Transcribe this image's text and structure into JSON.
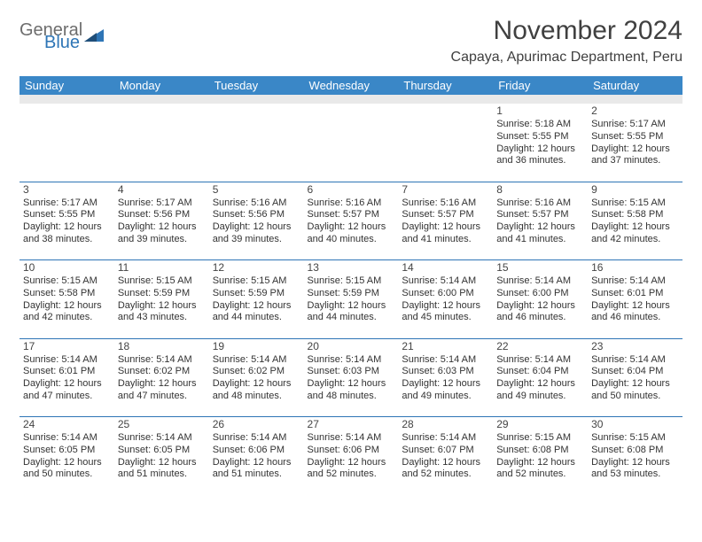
{
  "brand": {
    "general": "General",
    "blue": "Blue"
  },
  "title": "November 2024",
  "location": "Capaya, Apurimac Department, Peru",
  "colors": {
    "header_bg": "#3a87c7",
    "header_text": "#ffffff",
    "rule": "#2e75b6",
    "gap_bg": "#e9e9e9",
    "title_color": "#404040",
    "logo_gray": "#6d6d6d",
    "logo_blue": "#2e75b6",
    "cell_text": "#333333"
  },
  "day_headers": [
    "Sunday",
    "Monday",
    "Tuesday",
    "Wednesday",
    "Thursday",
    "Friday",
    "Saturday"
  ],
  "weeks": [
    [
      null,
      null,
      null,
      null,
      null,
      {
        "n": "1",
        "sunrise": "Sunrise: 5:18 AM",
        "sunset": "Sunset: 5:55 PM",
        "day1": "Daylight: 12 hours",
        "day2": "and 36 minutes."
      },
      {
        "n": "2",
        "sunrise": "Sunrise: 5:17 AM",
        "sunset": "Sunset: 5:55 PM",
        "day1": "Daylight: 12 hours",
        "day2": "and 37 minutes."
      }
    ],
    [
      {
        "n": "3",
        "sunrise": "Sunrise: 5:17 AM",
        "sunset": "Sunset: 5:55 PM",
        "day1": "Daylight: 12 hours",
        "day2": "and 38 minutes."
      },
      {
        "n": "4",
        "sunrise": "Sunrise: 5:17 AM",
        "sunset": "Sunset: 5:56 PM",
        "day1": "Daylight: 12 hours",
        "day2": "and 39 minutes."
      },
      {
        "n": "5",
        "sunrise": "Sunrise: 5:16 AM",
        "sunset": "Sunset: 5:56 PM",
        "day1": "Daylight: 12 hours",
        "day2": "and 39 minutes."
      },
      {
        "n": "6",
        "sunrise": "Sunrise: 5:16 AM",
        "sunset": "Sunset: 5:57 PM",
        "day1": "Daylight: 12 hours",
        "day2": "and 40 minutes."
      },
      {
        "n": "7",
        "sunrise": "Sunrise: 5:16 AM",
        "sunset": "Sunset: 5:57 PM",
        "day1": "Daylight: 12 hours",
        "day2": "and 41 minutes."
      },
      {
        "n": "8",
        "sunrise": "Sunrise: 5:16 AM",
        "sunset": "Sunset: 5:57 PM",
        "day1": "Daylight: 12 hours",
        "day2": "and 41 minutes."
      },
      {
        "n": "9",
        "sunrise": "Sunrise: 5:15 AM",
        "sunset": "Sunset: 5:58 PM",
        "day1": "Daylight: 12 hours",
        "day2": "and 42 minutes."
      }
    ],
    [
      {
        "n": "10",
        "sunrise": "Sunrise: 5:15 AM",
        "sunset": "Sunset: 5:58 PM",
        "day1": "Daylight: 12 hours",
        "day2": "and 42 minutes."
      },
      {
        "n": "11",
        "sunrise": "Sunrise: 5:15 AM",
        "sunset": "Sunset: 5:59 PM",
        "day1": "Daylight: 12 hours",
        "day2": "and 43 minutes."
      },
      {
        "n": "12",
        "sunrise": "Sunrise: 5:15 AM",
        "sunset": "Sunset: 5:59 PM",
        "day1": "Daylight: 12 hours",
        "day2": "and 44 minutes."
      },
      {
        "n": "13",
        "sunrise": "Sunrise: 5:15 AM",
        "sunset": "Sunset: 5:59 PM",
        "day1": "Daylight: 12 hours",
        "day2": "and 44 minutes."
      },
      {
        "n": "14",
        "sunrise": "Sunrise: 5:14 AM",
        "sunset": "Sunset: 6:00 PM",
        "day1": "Daylight: 12 hours",
        "day2": "and 45 minutes."
      },
      {
        "n": "15",
        "sunrise": "Sunrise: 5:14 AM",
        "sunset": "Sunset: 6:00 PM",
        "day1": "Daylight: 12 hours",
        "day2": "and 46 minutes."
      },
      {
        "n": "16",
        "sunrise": "Sunrise: 5:14 AM",
        "sunset": "Sunset: 6:01 PM",
        "day1": "Daylight: 12 hours",
        "day2": "and 46 minutes."
      }
    ],
    [
      {
        "n": "17",
        "sunrise": "Sunrise: 5:14 AM",
        "sunset": "Sunset: 6:01 PM",
        "day1": "Daylight: 12 hours",
        "day2": "and 47 minutes."
      },
      {
        "n": "18",
        "sunrise": "Sunrise: 5:14 AM",
        "sunset": "Sunset: 6:02 PM",
        "day1": "Daylight: 12 hours",
        "day2": "and 47 minutes."
      },
      {
        "n": "19",
        "sunrise": "Sunrise: 5:14 AM",
        "sunset": "Sunset: 6:02 PM",
        "day1": "Daylight: 12 hours",
        "day2": "and 48 minutes."
      },
      {
        "n": "20",
        "sunrise": "Sunrise: 5:14 AM",
        "sunset": "Sunset: 6:03 PM",
        "day1": "Daylight: 12 hours",
        "day2": "and 48 minutes."
      },
      {
        "n": "21",
        "sunrise": "Sunrise: 5:14 AM",
        "sunset": "Sunset: 6:03 PM",
        "day1": "Daylight: 12 hours",
        "day2": "and 49 minutes."
      },
      {
        "n": "22",
        "sunrise": "Sunrise: 5:14 AM",
        "sunset": "Sunset: 6:04 PM",
        "day1": "Daylight: 12 hours",
        "day2": "and 49 minutes."
      },
      {
        "n": "23",
        "sunrise": "Sunrise: 5:14 AM",
        "sunset": "Sunset: 6:04 PM",
        "day1": "Daylight: 12 hours",
        "day2": "and 50 minutes."
      }
    ],
    [
      {
        "n": "24",
        "sunrise": "Sunrise: 5:14 AM",
        "sunset": "Sunset: 6:05 PM",
        "day1": "Daylight: 12 hours",
        "day2": "and 50 minutes."
      },
      {
        "n": "25",
        "sunrise": "Sunrise: 5:14 AM",
        "sunset": "Sunset: 6:05 PM",
        "day1": "Daylight: 12 hours",
        "day2": "and 51 minutes."
      },
      {
        "n": "26",
        "sunrise": "Sunrise: 5:14 AM",
        "sunset": "Sunset: 6:06 PM",
        "day1": "Daylight: 12 hours",
        "day2": "and 51 minutes."
      },
      {
        "n": "27",
        "sunrise": "Sunrise: 5:14 AM",
        "sunset": "Sunset: 6:06 PM",
        "day1": "Daylight: 12 hours",
        "day2": "and 52 minutes."
      },
      {
        "n": "28",
        "sunrise": "Sunrise: 5:14 AM",
        "sunset": "Sunset: 6:07 PM",
        "day1": "Daylight: 12 hours",
        "day2": "and 52 minutes."
      },
      {
        "n": "29",
        "sunrise": "Sunrise: 5:15 AM",
        "sunset": "Sunset: 6:08 PM",
        "day1": "Daylight: 12 hours",
        "day2": "and 52 minutes."
      },
      {
        "n": "30",
        "sunrise": "Sunrise: 5:15 AM",
        "sunset": "Sunset: 6:08 PM",
        "day1": "Daylight: 12 hours",
        "day2": "and 53 minutes."
      }
    ]
  ]
}
